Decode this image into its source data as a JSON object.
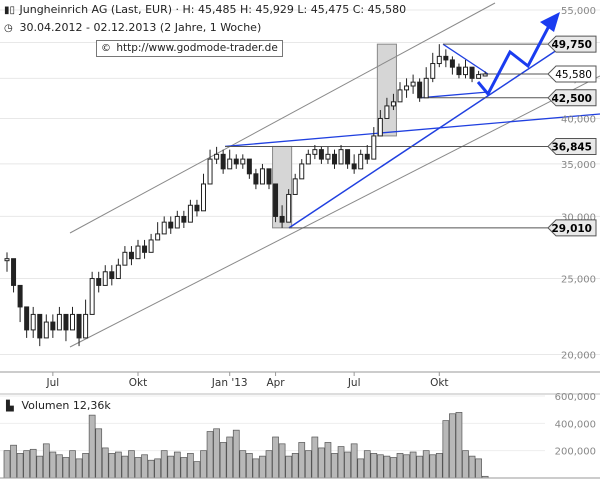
{
  "header": {
    "title": "Jungheinrich AG (Last, EUR) · H: 45,485 H: 45,929 L: 45,475 C: 45,580",
    "range": "30.04.2012 - 02.12.2013 (2 Jahre, 1 Woche)",
    "source": "http://www.godmode-trader.de"
  },
  "volume_label": "Volumen",
  "volume_value": "12,36k",
  "colors": {
    "candle": "#222222",
    "channel": "#8a8a8a",
    "trend_blue": "#2040e0",
    "arrow_blue": "#1a3cf0",
    "level_line": "#555555",
    "highlight_box": "#d6d6d6",
    "volume_bar": "#b8b8b8"
  },
  "chart_data": [
    {
      "type": "candlestick",
      "title": "Jungheinrich AG (Last, EUR)",
      "x_ticks": [
        "Jul",
        "Okt",
        "Jan '13",
        "Apr",
        "Jul",
        "Okt"
      ],
      "y_ticks": [
        20000,
        25000,
        30000,
        35000,
        40000,
        45000,
        50000,
        55000
      ],
      "y_tick_labels": [
        "20,000",
        "25,000",
        "30,000",
        "35,000",
        "40,000",
        "45,000",
        "50,000",
        "55,000"
      ],
      "y_scale": "log",
      "ylim": [
        19000,
        55000
      ],
      "levels": [
        {
          "value": 49750,
          "label": "49,750"
        },
        {
          "value": 45580,
          "label": "45,580"
        },
        {
          "value": 42500,
          "label": "42,500"
        },
        {
          "value": 36845,
          "label": "36,845"
        },
        {
          "value": 29010,
          "label": "29,010"
        }
      ],
      "weeks_close": [
        26500,
        24500,
        23000,
        21500,
        22500,
        21000,
        22000,
        21500,
        22500,
        21500,
        22500,
        21000,
        22500,
        25000,
        24500,
        25500,
        25000,
        26000,
        27000,
        26500,
        27500,
        27000,
        28000,
        28500,
        29500,
        29000,
        30000,
        29500,
        31000,
        30500,
        33000,
        35500,
        36000,
        34500,
        35500,
        35000,
        35500,
        34000,
        33000,
        34500,
        33000,
        30000,
        29500,
        32000,
        33500,
        35000,
        36000,
        36500,
        35500,
        36000,
        35000,
        36500,
        35000,
        34500,
        36000,
        35500,
        38000,
        40000,
        41500,
        42000,
        43500,
        44000,
        44500,
        42500,
        45000,
        47000,
        48000,
        47500,
        46500,
        45500,
        46500,
        45000,
        45500,
        45580
      ],
      "weeks_high": [
        27000,
        26000,
        24500,
        23000,
        23000,
        22500,
        22500,
        22500,
        23000,
        22500,
        23000,
        22500,
        23500,
        25500,
        25500,
        26000,
        26000,
        26500,
        27500,
        27500,
        28000,
        28000,
        28500,
        29500,
        30000,
        30000,
        30500,
        30500,
        31500,
        31500,
        34000,
        36500,
        36800,
        36500,
        36500,
        36000,
        36000,
        35500,
        34500,
        35000,
        34500,
        33000,
        31000,
        32500,
        34000,
        35500,
        36500,
        37000,
        36800,
        36800,
        36500,
        37000,
        36500,
        36000,
        36500,
        37000,
        39000,
        41000,
        42500,
        43000,
        44500,
        45000,
        45500,
        45000,
        46500,
        48500,
        49750,
        49000,
        48000,
        47000,
        47500,
        46500,
        46000,
        45929
      ],
      "weeks_low": [
        25500,
        24000,
        22000,
        21000,
        21000,
        20500,
        21000,
        21000,
        21500,
        20800,
        21500,
        20500,
        21500,
        24000,
        24000,
        24500,
        24500,
        25500,
        26000,
        26000,
        27000,
        26500,
        27000,
        28000,
        28500,
        28500,
        29000,
        29000,
        30000,
        30000,
        31500,
        34000,
        35000,
        34000,
        34500,
        34500,
        34500,
        33500,
        32500,
        33000,
        32500,
        29500,
        29010,
        29500,
        32000,
        33500,
        35000,
        35500,
        35000,
        35000,
        34500,
        35000,
        34500,
        34000,
        35000,
        35000,
        36000,
        38000,
        40000,
        41000,
        42500,
        42500,
        43000,
        42000,
        42500,
        44500,
        46500,
        46500,
        45500,
        45000,
        45000,
        44500,
        45000,
        45475
      ]
    },
    {
      "type": "bar",
      "title": "Volumen",
      "y_ticks": [
        200000,
        400000,
        600000
      ],
      "y_tick_labels": [
        "200,000",
        "400,000",
        "600,000"
      ],
      "ylim": [
        0,
        600000
      ],
      "values": [
        200000,
        240000,
        180000,
        200000,
        210000,
        160000,
        250000,
        190000,
        170000,
        150000,
        200000,
        140000,
        180000,
        460000,
        360000,
        220000,
        180000,
        190000,
        160000,
        200000,
        150000,
        170000,
        130000,
        140000,
        200000,
        160000,
        190000,
        150000,
        180000,
        120000,
        200000,
        340000,
        360000,
        260000,
        300000,
        350000,
        200000,
        180000,
        140000,
        160000,
        200000,
        300000,
        250000,
        160000,
        180000,
        260000,
        200000,
        300000,
        220000,
        260000,
        180000,
        230000,
        190000,
        250000,
        140000,
        200000,
        180000,
        170000,
        160000,
        150000,
        180000,
        170000,
        190000,
        160000,
        200000,
        170000,
        180000,
        420000,
        470000,
        480000,
        200000,
        160000,
        140000,
        12360
      ]
    }
  ]
}
